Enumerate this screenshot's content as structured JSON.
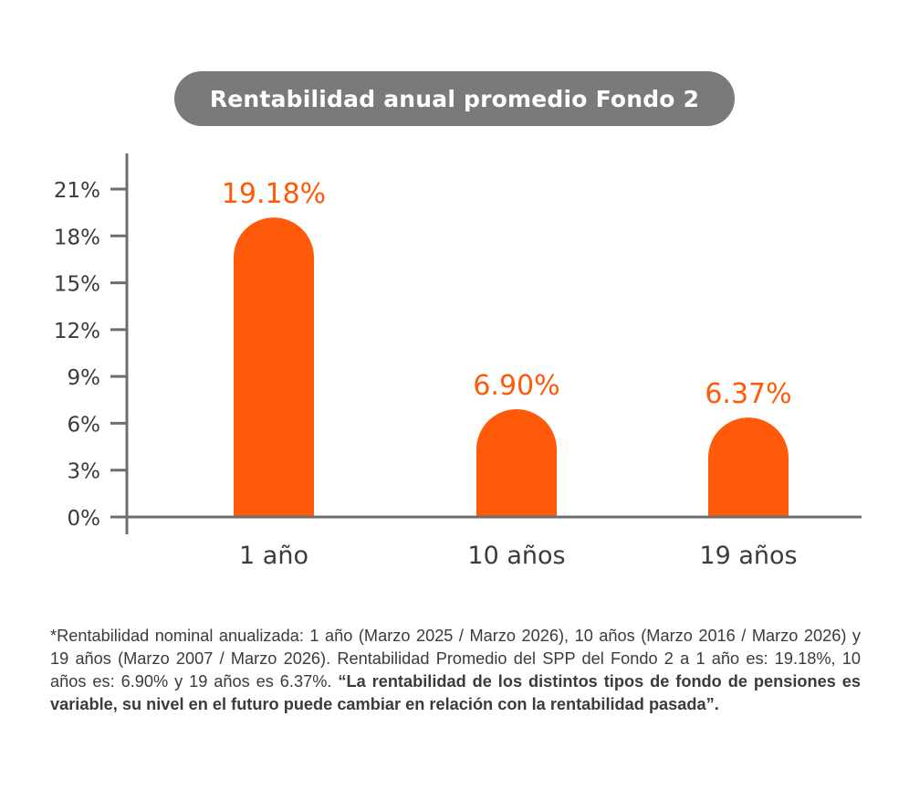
{
  "colors": {
    "bar": "#ff5a0a",
    "label": "#ff5a0a",
    "axis": "#6e6e6e",
    "title_bg": "#7a7a7a",
    "text": "#3b3b3b"
  },
  "chart_data": {
    "type": "bar",
    "title": "Rentabilidad anual promedio Fondo 2",
    "categories": [
      "1 año",
      "10 años",
      "19 años"
    ],
    "values": [
      19.18,
      6.9,
      6.37
    ],
    "value_labels": [
      "19.18%",
      "6.90%",
      "6.37%"
    ],
    "ylim": [
      0,
      21
    ],
    "yticks": [
      0,
      3,
      6,
      9,
      12,
      15,
      18,
      21
    ],
    "ytick_labels": [
      "0%",
      "3%",
      "6%",
      "9%",
      "12%",
      "15%",
      "18%",
      "21%"
    ],
    "xlabel": "",
    "ylabel": "",
    "grid": false,
    "legend": "none"
  },
  "footnote": {
    "normal": "*Rentabilidad nominal anualizada: 1 año (Marzo 2025 / Marzo 2026), 10 años (Marzo 2016 / Marzo 2026) y 19 años (Marzo 2007 / Marzo 2026). Rentabilidad Promedio del SPP del Fondo 2 a 1 año es: 19.18%, 10 años es: 6.90% y 19 años es 6.37%. ",
    "bold": "“La rentabilidad de los distintos tipos de fondo de pensiones es variable, su nivel en el futuro puede cambiar en relación con la rentabilidad pasada”."
  }
}
